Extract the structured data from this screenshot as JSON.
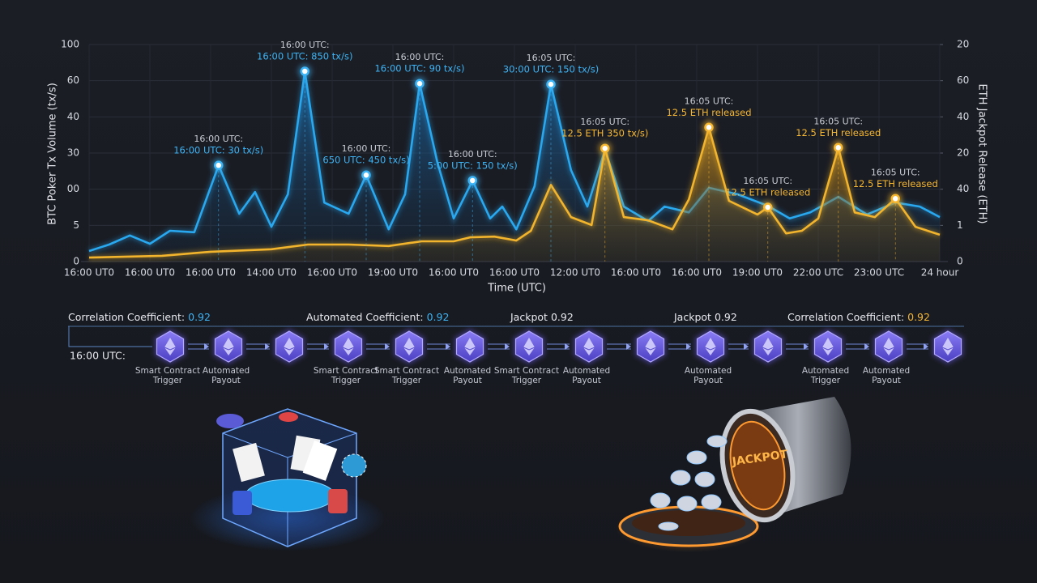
{
  "chart_data": {
    "type": "line",
    "y_label": "BTC Poker Tx Volume (tx/s)",
    "y2_label": "ETH Jackpot Release (ETH)",
    "x_label": "Time (UTC)",
    "xlim": [
      0,
      14
    ],
    "xticks": [
      {
        "value": 0,
        "label": "16:00 UT0"
      },
      {
        "value": 1,
        "label": "16:00 UT0"
      },
      {
        "value": 2,
        "label": "16:00 UT0"
      },
      {
        "value": 3,
        "label": "14:00 UT0"
      },
      {
        "value": 4,
        "label": "16:00 UT0"
      },
      {
        "value": 5,
        "label": "19:00 UT0"
      },
      {
        "value": 6,
        "label": "16:00 UT0"
      },
      {
        "value": 7,
        "label": "16:00 UT0"
      },
      {
        "value": 8,
        "label": "12:00 UT0"
      },
      {
        "value": 9,
        "label": "16:00 UT0"
      },
      {
        "value": 10,
        "label": "16:00 UT0"
      },
      {
        "value": 11,
        "label": "19:00 UT0"
      },
      {
        "value": 12,
        "label": "22:00 UTC"
      },
      {
        "value": 13,
        "label": "23:00 UTC"
      },
      {
        "value": 14,
        "label": "24 hour"
      }
    ],
    "ylim": [
      0,
      6
    ],
    "yticks": [
      0,
      {
        "value": 1,
        "label": "5"
      },
      {
        "value": 2,
        "label": "00"
      },
      {
        "value": 3,
        "label": "30"
      },
      {
        "value": 4,
        "label": "40"
      },
      {
        "value": 5,
        "label": "60"
      },
      {
        "value": 6,
        "label": "100"
      }
    ],
    "y2lim": [
      0,
      6
    ],
    "y2ticks": [
      0,
      1,
      {
        "value": 2,
        "label": "40"
      },
      {
        "value": 3,
        "label": "20"
      },
      {
        "value": 4,
        "label": "40"
      },
      {
        "value": 5,
        "label": "60"
      },
      {
        "value": 6,
        "label": "20"
      }
    ],
    "grid": true,
    "series": [
      {
        "color": "#29a8f0",
        "x": [
          0,
          0.33,
          0.67,
          1,
          1.33,
          1.73,
          2.13,
          2.47,
          2.73,
          3,
          3.27,
          3.55,
          3.87,
          4.27,
          4.56,
          4.93,
          5.2,
          5.44,
          5.73,
          6,
          6.31,
          6.6,
          6.8,
          7.03,
          7.33,
          7.6,
          7.93,
          8.2,
          8.49,
          8.8,
          9.2,
          9.47,
          9.87,
          10.2,
          10.67,
          11.17,
          11.53,
          11.87,
          12.33,
          12.8,
          13.27,
          13.67,
          14
        ],
        "values": [
          0.29,
          0.47,
          0.72,
          0.49,
          0.85,
          0.81,
          2.66,
          1.32,
          1.92,
          0.96,
          1.86,
          5.26,
          1.63,
          1.32,
          2.39,
          0.89,
          1.86,
          4.92,
          2.75,
          1.19,
          2.24,
          1.19,
          1.52,
          0.89,
          2.08,
          4.9,
          2.53,
          1.52,
          3.09,
          1.52,
          1.12,
          1.52,
          1.36,
          2.04,
          1.86,
          1.54,
          1.19,
          1.36,
          1.79,
          1.3,
          1.63,
          1.52,
          1.23
        ]
      },
      {
        "color": "#f2b42c",
        "axis": "y2",
        "x": [
          0,
          1.2,
          2,
          3,
          3.6,
          4.27,
          4.93,
          5.47,
          6,
          6.27,
          6.67,
          7.03,
          7.27,
          7.6,
          7.93,
          8.27,
          8.49,
          8.8,
          9.2,
          9.6,
          9.87,
          10.2,
          10.53,
          11,
          11.17,
          11.47,
          11.73,
          12,
          12.33,
          12.6,
          12.93,
          13.27,
          13.6,
          14
        ],
        "values": [
          0.11,
          0.16,
          0.27,
          0.34,
          0.47,
          0.47,
          0.43,
          0.56,
          0.56,
          0.67,
          0.69,
          0.58,
          0.85,
          2.12,
          1.23,
          1.01,
          3.13,
          1.23,
          1.14,
          0.89,
          1.72,
          3.71,
          1.68,
          1.3,
          1.5,
          0.78,
          0.85,
          1.19,
          3.15,
          1.36,
          1.23,
          1.74,
          0.96,
          0.74
        ]
      }
    ],
    "annotations": [
      {
        "x": 2.13,
        "y": 2.66,
        "title": "16:00 UTC:",
        "text": "16:00 UTC: 30 tx/s)",
        "color": "#3db4f5"
      },
      {
        "x": 3.55,
        "y": 5.26,
        "title": "16:00 UTC:",
        "text": "16:00 UTC: 850 tx/s)",
        "color": "#3db4f5"
      },
      {
        "x": 4.56,
        "y": 2.39,
        "title": "16:00 UTC:",
        "text": "650 UTC: 450 tx/s)",
        "color": "#3db4f5"
      },
      {
        "x": 5.44,
        "y": 4.92,
        "title": "16:00 UTC:",
        "text": "16:00 UTC: 90 tx/s)",
        "color": "#3db4f5"
      },
      {
        "x": 6.31,
        "y": 2.24,
        "title": "16:00 UTC:",
        "text": "5:00 UTC: 150 tx/s)",
        "color": "#3db4f5"
      },
      {
        "x": 7.6,
        "y": 4.9,
        "title": "16:05 UTC:",
        "text": "30:00 UTC: 150 tx/s)",
        "color": "#3db4f5"
      },
      {
        "x": 8.49,
        "y": 3.13,
        "axis": "y2",
        "title": "16:05 UTC:",
        "text": "12.5 ETH 350 tx/s)",
        "color": "#f5b631"
      },
      {
        "x": 10.2,
        "y": 3.71,
        "axis": "y2",
        "title": "16:05 UTC:",
        "text": "12.5 ETH released",
        "color": "#f5b631"
      },
      {
        "x": 11.17,
        "y": 1.5,
        "axis": "y2",
        "title": "16:05 UTC:",
        "text": "12.5 ETH released",
        "color": "#f5b631"
      },
      {
        "x": 12.33,
        "y": 3.15,
        "axis": "y2",
        "title": "16:05 UTC:",
        "text": "12.5 ETH released",
        "color": "#f5b631"
      },
      {
        "x": 13.27,
        "y": 1.74,
        "axis": "y2",
        "title": "16:05 UTC:",
        "text": "12.5 ETH released",
        "color": "#f5b631"
      }
    ]
  },
  "flow": {
    "start_label": "16:00 UTC:",
    "headers": [
      {
        "label": "Correlation Coefficient:",
        "value": 0.92,
        "value_color": "#3db4f5"
      },
      {
        "label": "Automated Coefficient:",
        "value": 0.92,
        "value_color": "#3db4f5"
      },
      {
        "label": "Jackpot",
        "value": 0.92,
        "value_color": "#e8eaf0"
      },
      {
        "label": "Jackpot",
        "value": 0.92,
        "value_color": "#e8eaf0"
      },
      {
        "label": "Correlation Coefficient:",
        "value": 0.92,
        "value_color": "#f5b631"
      }
    ],
    "steps": [
      [
        "Smart Contract",
        "Trigger"
      ],
      [
        "Automated",
        "Payout"
      ],
      null,
      [
        "Smart Contract",
        "Trigger"
      ],
      [
        "Smart Contract",
        "Trigger"
      ],
      [
        "Automated",
        "Payout"
      ],
      [
        "Smart Contract",
        "Trigger"
      ],
      [
        "Automated",
        "Payout"
      ],
      null,
      [
        "Automated",
        "Payout"
      ],
      null,
      [
        "Automated",
        "Trigger"
      ],
      [
        "Automated",
        "Payout"
      ],
      null
    ]
  },
  "illustration": {
    "jackpot_label": "JACKPOT"
  }
}
